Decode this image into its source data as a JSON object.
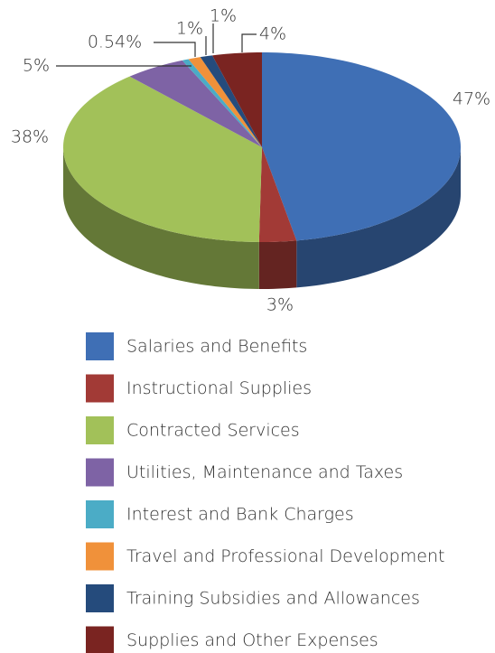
{
  "chart_data": {
    "type": "pie",
    "categories": [
      "Salaries and Benefits",
      "Instructional Supplies",
      "Contracted Services",
      "Utilities, Maintenance and Taxes",
      "Interest and Bank Charges",
      "Travel and Professional Development",
      "Training Subsidies and Allowances",
      "Supplies and Other Expenses"
    ],
    "values": [
      47,
      3,
      38,
      5,
      0.54,
      1,
      1,
      4
    ],
    "value_labels": [
      "47%",
      "3%",
      "38%",
      "5%",
      "0.54%",
      "1%",
      "1%",
      "4%"
    ],
    "colors": [
      "#3f6fb5",
      "#a23a36",
      "#a2c159",
      "#7e63a5",
      "#4bacc6",
      "#f0913a",
      "#254b7c",
      "#7a2421"
    ],
    "legend": "bottom"
  }
}
